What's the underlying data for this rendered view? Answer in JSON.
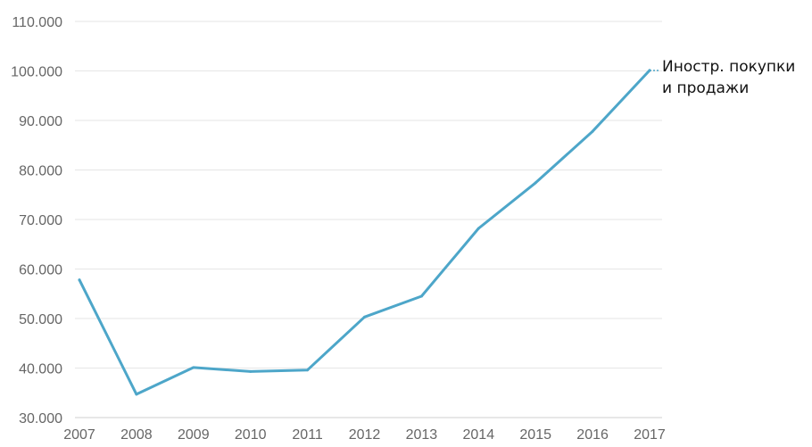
{
  "chart_data": {
    "type": "line",
    "title": "",
    "xlabel": "",
    "ylabel": "",
    "x": [
      2007,
      2008,
      2009,
      2010,
      2011,
      2012,
      2013,
      2014,
      2015,
      2016,
      2017
    ],
    "y_ticks": [
      "30.000",
      "40.000",
      "50.000",
      "60.000",
      "70.000",
      "80.000",
      "90.000",
      "100.000",
      "110.000"
    ],
    "y_tick_values": [
      30000,
      40000,
      50000,
      60000,
      70000,
      80000,
      90000,
      100000,
      110000
    ],
    "ylim": [
      30000,
      110000
    ],
    "grid": true,
    "series": [
      {
        "label_lines": [
          "Иностр. покупки",
          "и продажи"
        ],
        "color": "#4da6c9",
        "values": [
          57800,
          34700,
          40100,
          39300,
          39600,
          50300,
          54500,
          68200,
          77400,
          87800,
          100100
        ]
      }
    ]
  }
}
